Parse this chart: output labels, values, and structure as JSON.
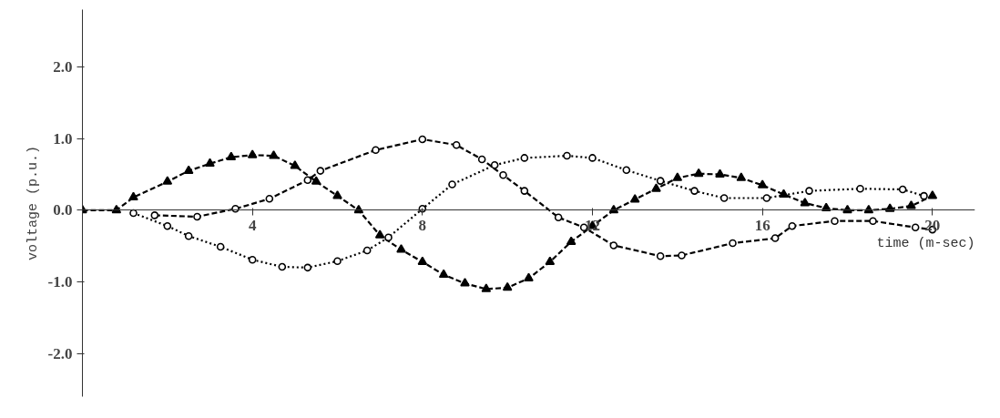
{
  "chart_data": {
    "type": "line",
    "xlabel": "time (m-sec)",
    "ylabel": "voltage (p.u.)",
    "xlim": [
      0,
      21
    ],
    "ylim": [
      -2.6,
      2.8
    ],
    "xticks": [
      4,
      8,
      12,
      16,
      20
    ],
    "yticks": [
      {
        "value": 2,
        "label": "2.0"
      },
      {
        "value": 1,
        "label": "1.0"
      },
      {
        "value": 0,
        "label": "0.0"
      },
      {
        "value": -1,
        "label": "-1.0"
      },
      {
        "value": -2,
        "label": "-2.0"
      }
    ],
    "grid": false,
    "series": [
      {
        "color": "#000000",
        "marker": "triangle",
        "line_style": "dashed",
        "x": [
          0,
          0.8,
          1.2,
          2,
          2.5,
          3,
          3.5,
          4,
          4.5,
          5,
          5.5,
          6,
          6.5,
          7,
          7.5,
          8,
          8.5,
          9,
          9.5,
          10,
          10.5,
          11,
          11.5,
          12,
          12.5,
          13,
          13.5,
          14,
          14.5,
          15,
          15.5,
          16,
          16.5,
          17,
          17.5,
          18,
          18.5,
          19,
          19.5,
          20
        ],
        "values": [
          0,
          0,
          0.18,
          0.4,
          0.55,
          0.65,
          0.74,
          0.77,
          0.76,
          0.62,
          0.4,
          0.2,
          0.0,
          -0.35,
          -0.55,
          -0.72,
          -0.9,
          -1.02,
          -1.1,
          -1.08,
          -0.95,
          -0.72,
          -0.44,
          -0.22,
          0.0,
          0.15,
          0.3,
          0.45,
          0.51,
          0.5,
          0.45,
          0.35,
          0.22,
          0.1,
          0.03,
          0.0,
          0.0,
          0.02,
          0.06,
          0.2
        ]
      },
      {
        "color": "#000000",
        "marker": "circle",
        "line_style": "dashed",
        "x": [
          1.7,
          2.7,
          3.6,
          4.4,
          5.3,
          5.6,
          6.9,
          8.0,
          8.8,
          9.4,
          9.9,
          10.4,
          11.2,
          11.8,
          12.5,
          13.6,
          14.1,
          15.3,
          16.3,
          16.7,
          17.7,
          18.6,
          19.6,
          20
        ],
        "values": [
          -0.07,
          -0.09,
          0.02,
          0.16,
          0.42,
          0.55,
          0.84,
          0.99,
          0.91,
          0.71,
          0.49,
          0.27,
          -0.1,
          -0.24,
          -0.49,
          -0.64,
          -0.63,
          -0.46,
          -0.39,
          -0.22,
          -0.15,
          -0.15,
          -0.24,
          -0.27
        ]
      },
      {
        "color": "#000000",
        "marker": "circle",
        "line_style": "dotted",
        "x": [
          1.2,
          2.0,
          2.5,
          3.25,
          4.0,
          4.7,
          5.3,
          6.0,
          6.7,
          7.2,
          8.0,
          8.7,
          9.7,
          10.4,
          11.4,
          12.0,
          12.8,
          13.6,
          14.4,
          15.1,
          16.1,
          17.1,
          18.3,
          19.3,
          19.8
        ],
        "values": [
          -0.04,
          -0.22,
          -0.36,
          -0.51,
          -0.69,
          -0.79,
          -0.8,
          -0.71,
          -0.56,
          -0.38,
          0.02,
          0.36,
          0.63,
          0.73,
          0.76,
          0.73,
          0.56,
          0.41,
          0.27,
          0.17,
          0.17,
          0.27,
          0.3,
          0.29,
          0.2
        ]
      }
    ]
  }
}
